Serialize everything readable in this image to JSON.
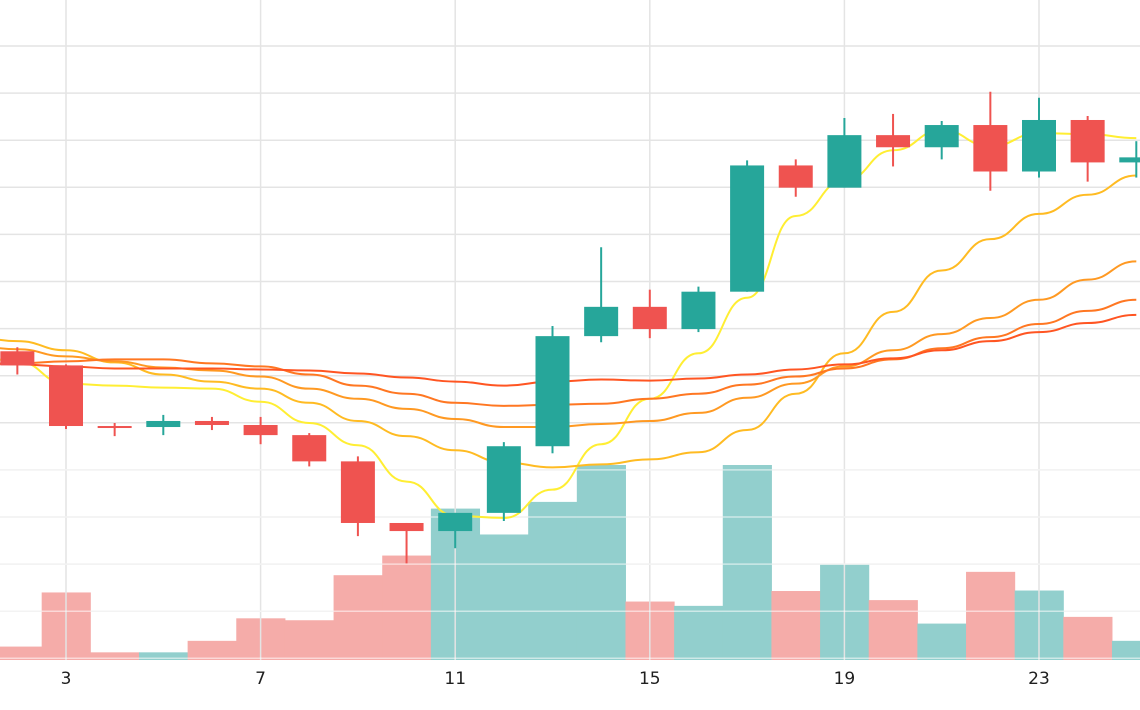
{
  "chart_data": {
    "type": "candlestick",
    "x_tick_labels": [
      "3",
      "7",
      "11",
      "15",
      "19",
      "23"
    ],
    "x_tick_days": [
      3,
      7,
      11,
      15,
      19,
      23
    ],
    "grid": true,
    "colors": {
      "up": "#26a69a",
      "down": "#ef5350",
      "volume_up": "#92cfcd",
      "volume_down": "#f5aca9",
      "grid": "#e4e4e4",
      "ma_colors": [
        "#ffee33",
        "#ffbb22",
        "#ff9922",
        "#ff7722",
        "#ff5522"
      ]
    },
    "candles": [
      {
        "day": 2,
        "open": 31.2,
        "high": 31.6,
        "low": 28.9,
        "close": 29.8,
        "volume": 28
      },
      {
        "day": 3,
        "open": 29.8,
        "high": 29.9,
        "low": 23.5,
        "close": 23.8,
        "volume": 141
      },
      {
        "day": 4,
        "open": 23.8,
        "high": 24.1,
        "low": 22.8,
        "close": 23.7,
        "volume": 16
      },
      {
        "day": 5,
        "open": 23.7,
        "high": 24.9,
        "low": 22.9,
        "close": 24.3,
        "volume": 16
      },
      {
        "day": 6,
        "open": 24.3,
        "high": 24.7,
        "low": 23.4,
        "close": 23.9,
        "volume": 40
      },
      {
        "day": 7,
        "open": 23.9,
        "high": 24.7,
        "low": 22.0,
        "close": 22.9,
        "volume": 87
      },
      {
        "day": 8,
        "open": 22.9,
        "high": 23.1,
        "low": 19.8,
        "close": 20.3,
        "volume": 83
      },
      {
        "day": 9,
        "open": 20.3,
        "high": 20.8,
        "low": 12.9,
        "close": 14.2,
        "volume": 177
      },
      {
        "day": 10,
        "open": 14.2,
        "high": 14.2,
        "low": 10.2,
        "close": 13.4,
        "volume": 218
      },
      {
        "day": 11,
        "open": 13.4,
        "high": 15.2,
        "low": 11.7,
        "close": 15.2,
        "volume": 316
      },
      {
        "day": 12,
        "open": 15.2,
        "high": 22.2,
        "low": 14.4,
        "close": 21.8,
        "volume": 262
      },
      {
        "day": 13,
        "open": 21.8,
        "high": 33.7,
        "low": 21.1,
        "close": 32.7,
        "volume": 330
      },
      {
        "day": 14,
        "open": 32.7,
        "high": 41.5,
        "low": 32.1,
        "close": 35.6,
        "volume": 407
      },
      {
        "day": 15,
        "open": 35.6,
        "high": 37.3,
        "low": 32.5,
        "close": 33.4,
        "volume": 122
      },
      {
        "day": 16,
        "open": 33.4,
        "high": 37.6,
        "low": 33.1,
        "close": 37.1,
        "volume": 113
      },
      {
        "day": 17,
        "open": 37.1,
        "high": 50.1,
        "low": 37.1,
        "close": 49.6,
        "volume": 407
      },
      {
        "day": 18,
        "open": 49.6,
        "high": 50.2,
        "low": 46.5,
        "close": 47.4,
        "volume": 144
      },
      {
        "day": 19,
        "open": 47.4,
        "high": 54.3,
        "low": 47.4,
        "close": 52.6,
        "volume": 199
      },
      {
        "day": 20,
        "open": 52.6,
        "high": 54.7,
        "low": 49.5,
        "close": 51.4,
        "volume": 125
      },
      {
        "day": 21,
        "open": 51.4,
        "high": 54.0,
        "low": 50.2,
        "close": 53.6,
        "volume": 76
      },
      {
        "day": 22,
        "open": 53.6,
        "high": 56.9,
        "low": 47.1,
        "close": 49.0,
        "volume": 184
      },
      {
        "day": 23,
        "open": 49.0,
        "high": 56.3,
        "low": 48.4,
        "close": 54.1,
        "volume": 145
      },
      {
        "day": 24,
        "open": 54.1,
        "high": 54.5,
        "low": 48.0,
        "close": 49.9,
        "volume": 90
      },
      {
        "day": 25,
        "open": 49.9,
        "high": 52.0,
        "low": 48.4,
        "close": 50.4,
        "volume": 40
      }
    ],
    "moving_averages": [
      {
        "values": [
          [
            1,
            30.9
          ],
          [
            2,
            30.2
          ],
          [
            3,
            28.0
          ],
          [
            4,
            27.8
          ],
          [
            5,
            27.6
          ],
          [
            6,
            27.5
          ],
          [
            7,
            26.2
          ],
          [
            8,
            24.1
          ],
          [
            9,
            21.9
          ],
          [
            10,
            18.3
          ],
          [
            11,
            14.9
          ],
          [
            12,
            14.7
          ],
          [
            13,
            17.5
          ],
          [
            14,
            22.0
          ],
          [
            15,
            26.5
          ],
          [
            16,
            31.0
          ],
          [
            17,
            36.5
          ],
          [
            18,
            44.6
          ],
          [
            19,
            48.1
          ],
          [
            20,
            51.1
          ],
          [
            21,
            53.1
          ],
          [
            22,
            51.5
          ],
          [
            23,
            52.8
          ],
          [
            24,
            52.7
          ],
          [
            25,
            52.3
          ]
        ]
      },
      {
        "values": [
          [
            1,
            32.7
          ],
          [
            2,
            32.2
          ],
          [
            3,
            31.3
          ],
          [
            4,
            30.1
          ],
          [
            5,
            28.9
          ],
          [
            6,
            28.2
          ],
          [
            7,
            27.5
          ],
          [
            8,
            26.1
          ],
          [
            9,
            24.3
          ],
          [
            10,
            22.8
          ],
          [
            11,
            21.4
          ],
          [
            12,
            20.2
          ],
          [
            13,
            19.7
          ],
          [
            14,
            20.0
          ],
          [
            15,
            20.5
          ],
          [
            16,
            21.2
          ],
          [
            17,
            23.4
          ],
          [
            18,
            27.0
          ],
          [
            19,
            31.0
          ],
          [
            20,
            35.1
          ],
          [
            21,
            39.2
          ],
          [
            22,
            42.3
          ],
          [
            23,
            44.8
          ],
          [
            24,
            46.7
          ],
          [
            25,
            48.6
          ]
        ]
      },
      {
        "values": [
          [
            1,
            31.8
          ],
          [
            2,
            31.4
          ],
          [
            3,
            30.7
          ],
          [
            4,
            30.2
          ],
          [
            5,
            29.6
          ],
          [
            6,
            29.3
          ],
          [
            7,
            28.7
          ],
          [
            8,
            27.5
          ],
          [
            9,
            26.5
          ],
          [
            10,
            25.5
          ],
          [
            11,
            24.5
          ],
          [
            12,
            23.7
          ],
          [
            13,
            23.7
          ],
          [
            14,
            24.0
          ],
          [
            15,
            24.3
          ],
          [
            16,
            25.1
          ],
          [
            17,
            26.6
          ],
          [
            18,
            28.0
          ],
          [
            19,
            29.7
          ],
          [
            20,
            31.3
          ],
          [
            21,
            32.9
          ],
          [
            22,
            34.5
          ],
          [
            23,
            36.3
          ],
          [
            24,
            38.3
          ],
          [
            25,
            40.1
          ]
        ]
      },
      {
        "values": [
          [
            1,
            29.8
          ],
          [
            2,
            30.0
          ],
          [
            3,
            30.2
          ],
          [
            4,
            30.4
          ],
          [
            5,
            30.4
          ],
          [
            6,
            30.0
          ],
          [
            7,
            29.7
          ],
          [
            8,
            28.9
          ],
          [
            9,
            27.8
          ],
          [
            10,
            27.0
          ],
          [
            11,
            26.1
          ],
          [
            12,
            25.8
          ],
          [
            13,
            25.9
          ],
          [
            14,
            26.0
          ],
          [
            15,
            26.5
          ],
          [
            16,
            27.0
          ],
          [
            17,
            27.9
          ],
          [
            18,
            28.7
          ],
          [
            19,
            29.5
          ],
          [
            20,
            30.4
          ],
          [
            21,
            31.5
          ],
          [
            22,
            32.6
          ],
          [
            23,
            33.9
          ],
          [
            24,
            35.2
          ],
          [
            25,
            36.3
          ]
        ]
      },
      {
        "values": [
          [
            1,
            30.2
          ],
          [
            2,
            29.9
          ],
          [
            3,
            29.7
          ],
          [
            4,
            29.5
          ],
          [
            5,
            29.5
          ],
          [
            6,
            29.5
          ],
          [
            7,
            29.4
          ],
          [
            8,
            29.3
          ],
          [
            9,
            29.0
          ],
          [
            10,
            28.6
          ],
          [
            11,
            28.2
          ],
          [
            12,
            27.8
          ],
          [
            13,
            28.2
          ],
          [
            14,
            28.4
          ],
          [
            15,
            28.3
          ],
          [
            16,
            28.5
          ],
          [
            17,
            28.9
          ],
          [
            18,
            29.4
          ],
          [
            19,
            29.9
          ],
          [
            20,
            30.5
          ],
          [
            21,
            31.3
          ],
          [
            22,
            32.2
          ],
          [
            23,
            33.1
          ],
          [
            24,
            34.0
          ],
          [
            25,
            34.8
          ]
        ]
      }
    ]
  }
}
